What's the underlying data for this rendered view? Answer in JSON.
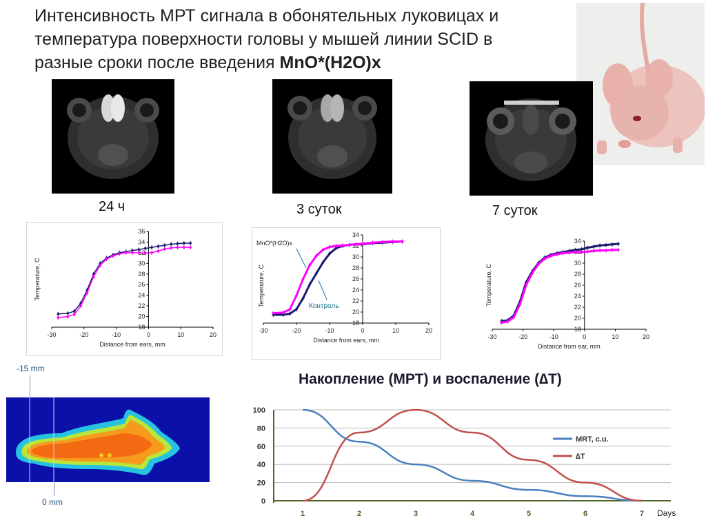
{
  "title": {
    "line1": "Интенсивность МРТ сигнала в обонятельных луковицах и",
    "line2": "температура поверхности головы у мышей линии  SCID в",
    "line3_plain": "разные сроки после введения ",
    "line3_bold": "MnO*(H2O)x"
  },
  "mri_captions": [
    "24 ч",
    "3 суток",
    "7 суток"
  ],
  "profile_charts": [
    {
      "type": "line",
      "ylabel": "Temperature, C",
      "xlabel": "Distance from ears, mm",
      "xlim": [
        -30,
        20
      ],
      "ylim": [
        18,
        36
      ],
      "xticks": [
        -30,
        -20,
        -10,
        0,
        10,
        20
      ],
      "yticks": [
        18,
        20,
        22,
        24,
        26,
        28,
        30,
        32,
        34,
        36
      ],
      "series": [
        {
          "color": "#1a1a6e",
          "x": [
            -28,
            -25,
            -23,
            -21,
            -19,
            -17,
            -15,
            -13,
            -11,
            -9,
            -7,
            -5,
            -3,
            -1,
            1,
            3,
            5,
            7,
            9,
            11,
            13
          ],
          "y": [
            20.5,
            20.6,
            21.0,
            22.5,
            25.0,
            28.0,
            30.0,
            31.0,
            31.6,
            32.0,
            32.2,
            32.4,
            32.6,
            32.8,
            33.0,
            33.2,
            33.4,
            33.6,
            33.7,
            33.8,
            33.8
          ]
        },
        {
          "color": "#ff00ff",
          "x": [
            -28,
            -25,
            -23,
            -21,
            -19,
            -17,
            -15,
            -13,
            -11,
            -9,
            -7,
            -5,
            -3,
            -1,
            1,
            3,
            5,
            7,
            9,
            11,
            13
          ],
          "y": [
            19.8,
            20.0,
            20.4,
            22.0,
            24.5,
            27.5,
            29.6,
            30.8,
            31.4,
            31.8,
            32.0,
            32.0,
            32.0,
            31.9,
            32.0,
            32.3,
            32.7,
            32.9,
            33.0,
            33.0,
            33.0
          ]
        }
      ]
    },
    {
      "type": "line",
      "ylabel": "Temperature, C",
      "xlabel": "Distance from ears, mm",
      "xlim": [
        -30,
        20
      ],
      "ylim": [
        18,
        34
      ],
      "xticks": [
        -30,
        -20,
        -10,
        0,
        10,
        20
      ],
      "yticks": [
        18,
        20,
        22,
        24,
        26,
        28,
        30,
        32,
        34
      ],
      "series_labels": {
        "mno": "MnO*(H2O)x",
        "control": "Контроль"
      },
      "series": [
        {
          "color": "#1a1a6e",
          "x": [
            -27,
            -24,
            -22,
            -20,
            -18,
            -16,
            -14,
            -12,
            -10,
            -8,
            -6,
            -4,
            -2,
            0,
            3,
            6,
            9,
            12
          ],
          "y": [
            19.5,
            19.5,
            19.7,
            20.5,
            22.5,
            25.0,
            27.0,
            29.0,
            30.6,
            31.6,
            32.0,
            32.2,
            32.3,
            32.3,
            32.5,
            32.6,
            32.7,
            32.8
          ]
        },
        {
          "color": "#ff00ff",
          "x": [
            -27,
            -24,
            -22,
            -20,
            -18,
            -16,
            -14,
            -12,
            -10,
            -8,
            -6,
            -4,
            -2,
            0,
            3,
            6,
            9,
            12
          ],
          "y": [
            19.8,
            19.9,
            20.5,
            23.0,
            26.0,
            28.5,
            30.2,
            31.3,
            31.8,
            32.0,
            32.1,
            32.2,
            32.3,
            32.4,
            32.6,
            32.7,
            32.8,
            32.8
          ]
        }
      ]
    },
    {
      "type": "line",
      "ylabel": "Temperature, C",
      "xlabel": "Distance from ear, mm",
      "xlim": [
        -30,
        20
      ],
      "ylim": [
        18,
        34
      ],
      "xticks": [
        -30,
        -20,
        -10,
        0,
        10,
        20
      ],
      "yticks": [
        18,
        20,
        22,
        24,
        26,
        28,
        30,
        32,
        34
      ],
      "series": [
        {
          "color": "#1a1a6e",
          "x": [
            -27,
            -25,
            -23,
            -21,
            -19,
            -17,
            -15,
            -13,
            -11,
            -9,
            -7,
            -5,
            -3,
            -1,
            1,
            3,
            5,
            7,
            9,
            11
          ],
          "y": [
            19.5,
            19.6,
            20.5,
            23.0,
            26.5,
            28.5,
            30.0,
            31.0,
            31.5,
            31.8,
            32.0,
            32.2,
            32.4,
            32.5,
            32.8,
            33.0,
            33.2,
            33.3,
            33.4,
            33.5
          ]
        },
        {
          "color": "#ff00ff",
          "x": [
            -27,
            -25,
            -23,
            -21,
            -19,
            -17,
            -15,
            -13,
            -11,
            -9,
            -7,
            -5,
            -3,
            -1,
            1,
            3,
            5,
            7,
            9,
            11
          ],
          "y": [
            19.2,
            19.4,
            20.2,
            22.5,
            26.0,
            28.2,
            29.8,
            30.8,
            31.3,
            31.6,
            31.8,
            31.9,
            32.0,
            32.0,
            32.1,
            32.2,
            32.3,
            32.3,
            32.4,
            32.4
          ]
        }
      ]
    }
  ],
  "thermo": {
    "mark_top": "-15 mm",
    "mark_bottom": "0 mm"
  },
  "chart_data": {
    "type": "line",
    "title": "Накопление (МРТ) и воспаление (∆T)",
    "categories": [
      1,
      2,
      3,
      4,
      5,
      6,
      7
    ],
    "xlabel": "Days",
    "ylim": [
      0,
      100
    ],
    "yticks": [
      0,
      20,
      40,
      60,
      80,
      100
    ],
    "series": [
      {
        "name": "MRT, c.u.",
        "color": "#4a7fbf",
        "values": [
          100,
          65,
          40,
          22,
          12,
          5,
          0
        ]
      },
      {
        "name": "∆T",
        "color": "#c0504d",
        "values": [
          0,
          75,
          100,
          75,
          45,
          20,
          0
        ]
      }
    ],
    "grid": true,
    "legend": "right"
  }
}
